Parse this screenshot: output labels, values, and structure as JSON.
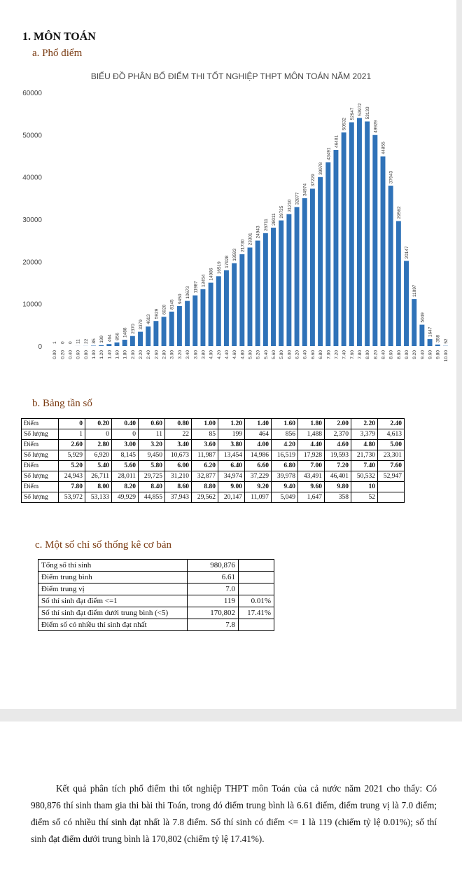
{
  "section_heading": "1. MÔN TOÁN",
  "sub_a": "a. Phổ điểm",
  "sub_b": "b. Bảng tần số",
  "sub_c": "c. Một số chỉ số thống kê cơ bản",
  "chart_data": {
    "type": "bar",
    "title": "BIỂU ĐỒ PHÂN BỐ ĐIỂM THI TỐT NGHIỆP THPT MÔN TOÁN NĂM 2021",
    "xlabel": "",
    "ylabel": "",
    "ylim": [
      0,
      60000
    ],
    "yticks": [
      "0",
      "10000",
      "20000",
      "30000",
      "40000",
      "50000",
      "60000"
    ],
    "grid": false,
    "color": "#2f72b8",
    "categories": [
      "0.00",
      "0.20",
      "0.40",
      "0.60",
      "0.80",
      "1.00",
      "1.20",
      "1.40",
      "1.60",
      "1.80",
      "2.00",
      "2.20",
      "2.40",
      "2.60",
      "2.80",
      "3.00",
      "3.20",
      "3.40",
      "3.60",
      "3.80",
      "4.00",
      "4.20",
      "4.40",
      "4.60",
      "4.80",
      "5.00",
      "5.20",
      "5.40",
      "5.60",
      "5.80",
      "6.00",
      "6.20",
      "6.40",
      "6.60",
      "6.80",
      "7.00",
      "7.20",
      "7.40",
      "7.60",
      "7.80",
      "8.00",
      "8.20",
      "8.40",
      "8.60",
      "8.80",
      "9.00",
      "9.20",
      "9.40",
      "9.60",
      "9.80",
      "10.00"
    ],
    "values": [
      1,
      0,
      0,
      11,
      22,
      85,
      199,
      464,
      856,
      1488,
      2370,
      3379,
      4613,
      5929,
      6920,
      8145,
      9450,
      10673,
      11987,
      13454,
      14986,
      16519,
      17928,
      19593,
      21730,
      23301,
      24943,
      26711,
      28011,
      29725,
      31210,
      32877,
      34974,
      37229,
      39978,
      43491,
      46401,
      50532,
      52947,
      53972,
      53133,
      49929,
      44855,
      37943,
      29562,
      20147,
      11097,
      5049,
      1647,
      358,
      52
    ]
  },
  "freq_table": {
    "label_score": "Điểm",
    "label_count": "Số lượng",
    "rows": [
      {
        "scores": [
          "0",
          "0.20",
          "0.40",
          "0.60",
          "0.80",
          "1.00",
          "1.20",
          "1.40",
          "1.60",
          "1.80",
          "2.00",
          "2.20",
          "2.40"
        ],
        "counts": [
          "1",
          "0",
          "0",
          "11",
          "22",
          "85",
          "199",
          "464",
          "856",
          "1,488",
          "2,370",
          "3,379",
          "4,613"
        ]
      },
      {
        "scores": [
          "2.60",
          "2.80",
          "3.00",
          "3.20",
          "3.40",
          "3.60",
          "3.80",
          "4.00",
          "4.20",
          "4.40",
          "4.60",
          "4.80",
          "5.00"
        ],
        "counts": [
          "5,929",
          "6,920",
          "8,145",
          "9,450",
          "10,673",
          "11,987",
          "13,454",
          "14,986",
          "16,519",
          "17,928",
          "19,593",
          "21,730",
          "23,301"
        ]
      },
      {
        "scores": [
          "5.20",
          "5.40",
          "5.60",
          "5.80",
          "6.00",
          "6.20",
          "6.40",
          "6.60",
          "6.80",
          "7.00",
          "7.20",
          "7.40",
          "7.60"
        ],
        "counts": [
          "24,943",
          "26,711",
          "28,011",
          "29,725",
          "31,210",
          "32,877",
          "34,974",
          "37,229",
          "39,978",
          "43,491",
          "46,401",
          "50,532",
          "52,947"
        ]
      },
      {
        "scores": [
          "7.80",
          "8.00",
          "8.20",
          "8.40",
          "8.60",
          "8.80",
          "9.00",
          "9.20",
          "9.40",
          "9.60",
          "9.80",
          "10",
          ""
        ],
        "counts": [
          "53,972",
          "53,133",
          "49,929",
          "44,855",
          "37,943",
          "29,562",
          "20,147",
          "11,097",
          "5,049",
          "1,647",
          "358",
          "52",
          ""
        ]
      }
    ]
  },
  "stats_table": [
    {
      "label": "Tổng số thí sinh",
      "value": "980,876",
      "pct": ""
    },
    {
      "label": "Điểm trung bình",
      "value": "6.61",
      "pct": ""
    },
    {
      "label": "Điểm trung vị",
      "value": "7.0",
      "pct": ""
    },
    {
      "label": "Số thí sinh đạt điểm <=1",
      "value": "119",
      "pct": "0.01%"
    },
    {
      "label": "Số thí sinh đạt điểm dưới trung bình (<5)",
      "value": "170,802",
      "pct": "17.41%"
    },
    {
      "label": "Điểm số có nhiều thí sinh đạt nhất",
      "value": "7.8",
      "pct": ""
    }
  ],
  "paragraph": "Kết quả phân tích phổ điểm thi tốt nghiệp THPT môn Toán của cả nước năm 2021 cho thấy: Có 980,876 thí sinh tham gia thi bài thi Toán, trong đó điểm trung bình là 6.61 điểm, điểm trung vị là 7.0 điểm; điểm số có nhiều thí sinh đạt nhất là 7.8 điểm. Số thí sinh có điểm <= 1 là 119 (chiếm tỷ lệ 0.01%); số thí sinh đạt điểm dưới trung bình là 170,802 (chiếm tỷ lệ 17.41%)."
}
